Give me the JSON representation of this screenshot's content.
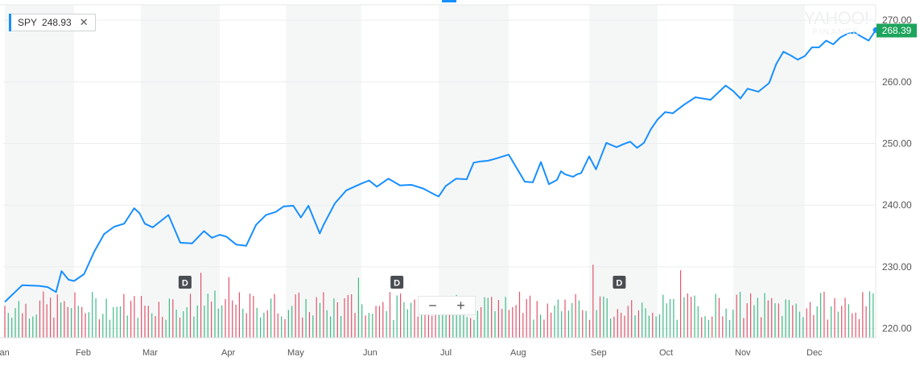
{
  "ticker": {
    "symbol": "SPY",
    "value": "248.93",
    "close_label": "✕"
  },
  "watermark": {
    "line1": "YAHOO!",
    "line2": "FINANCE"
  },
  "zoom": {
    "minus": "−",
    "plus": "+"
  },
  "colors": {
    "line": "#188fff",
    "up_volume": "#3fb985",
    "down_volume": "#e1546a",
    "last_price_badge": "#1da45c",
    "band": "#f5f7f7",
    "grid": "#ebedee"
  },
  "chart_data": {
    "type": "line",
    "x_tick_labels": [
      "Jan",
      "Feb",
      "Mar",
      "Apr",
      "May",
      "Jun",
      "Jul",
      "Aug",
      "Sep",
      "Oct",
      "Nov",
      "Dec"
    ],
    "y_tick_labels": [
      "220.00",
      "230.00",
      "240.00",
      "250.00",
      "260.00",
      "270.00"
    ],
    "ylim": [
      218.5,
      272.5
    ],
    "last_price": "268.39",
    "dividend_markers": [
      {
        "label": "D",
        "x": 2.56
      },
      {
        "label": "D",
        "x": 5.46
      },
      {
        "label": "D",
        "x": 8.44
      }
    ],
    "series": [
      {
        "x": [
          0.0,
          0.25,
          0.5,
          0.62,
          0.74,
          0.82,
          0.92,
          1.0,
          1.15,
          1.3,
          1.45,
          1.6,
          1.75,
          1.9,
          1.98,
          2.05,
          2.15,
          2.35,
          2.5,
          2.65,
          2.8,
          2.9,
          3.0,
          3.1,
          3.25,
          3.4,
          3.55,
          3.7,
          3.85,
          3.97,
          4.1,
          4.2,
          4.3,
          4.45,
          4.5,
          4.65,
          4.8,
          5.0,
          5.1,
          5.2,
          5.35,
          5.5,
          5.65,
          5.8,
          5.95,
          6.0,
          6.1,
          6.25,
          6.4,
          6.5,
          6.6,
          6.7,
          6.8,
          7.0,
          7.2,
          7.3,
          7.4,
          7.5,
          7.6,
          7.65,
          7.7,
          7.8,
          7.85,
          7.9,
          8.0,
          8.1,
          8.25,
          8.4,
          8.5,
          8.6,
          8.7,
          8.8,
          8.9,
          9.0,
          9.1,
          9.2,
          9.35,
          9.5,
          9.7,
          9.9,
          10.0,
          10.1,
          10.2,
          10.35,
          10.5,
          10.6,
          10.7,
          10.8,
          10.9,
          11.0,
          11.1,
          11.2,
          11.3,
          11.4,
          11.5,
          11.6,
          11.7,
          11.82,
          11.9,
          12.0
        ],
        "values": [
          224.3,
          227.0,
          226.9,
          226.7,
          225.9,
          229.3,
          227.9,
          227.7,
          228.8,
          232.4,
          235.3,
          236.5,
          237.0,
          239.5,
          238.7,
          237.0,
          236.4,
          238.4,
          233.9,
          233.8,
          235.8,
          234.7,
          235.2,
          234.9,
          233.6,
          233.4,
          236.8,
          238.4,
          238.9,
          239.8,
          239.9,
          238.0,
          239.9,
          235.4,
          236.8,
          240.3,
          242.4,
          243.5,
          244.0,
          243.0,
          244.3,
          243.2,
          243.3,
          242.7,
          241.7,
          241.4,
          243.1,
          244.3,
          244.2,
          246.9,
          247.1,
          247.2,
          247.5,
          248.2,
          243.8,
          243.7,
          247.0,
          243.4,
          244.1,
          245.5,
          245.0,
          244.6,
          245.0,
          245.2,
          247.9,
          245.8,
          250.1,
          249.4,
          249.9,
          250.3,
          249.3,
          250.1,
          252.3,
          253.9,
          255.1,
          254.9,
          256.3,
          257.5,
          257.1,
          259.4,
          258.5,
          257.3,
          258.9,
          258.4,
          259.8,
          262.9,
          264.9,
          264.3,
          263.6,
          264.2,
          265.6,
          265.6,
          266.7,
          266.1,
          267.2,
          267.8,
          268.0,
          267.2,
          266.7,
          268.4
        ]
      }
    ]
  }
}
